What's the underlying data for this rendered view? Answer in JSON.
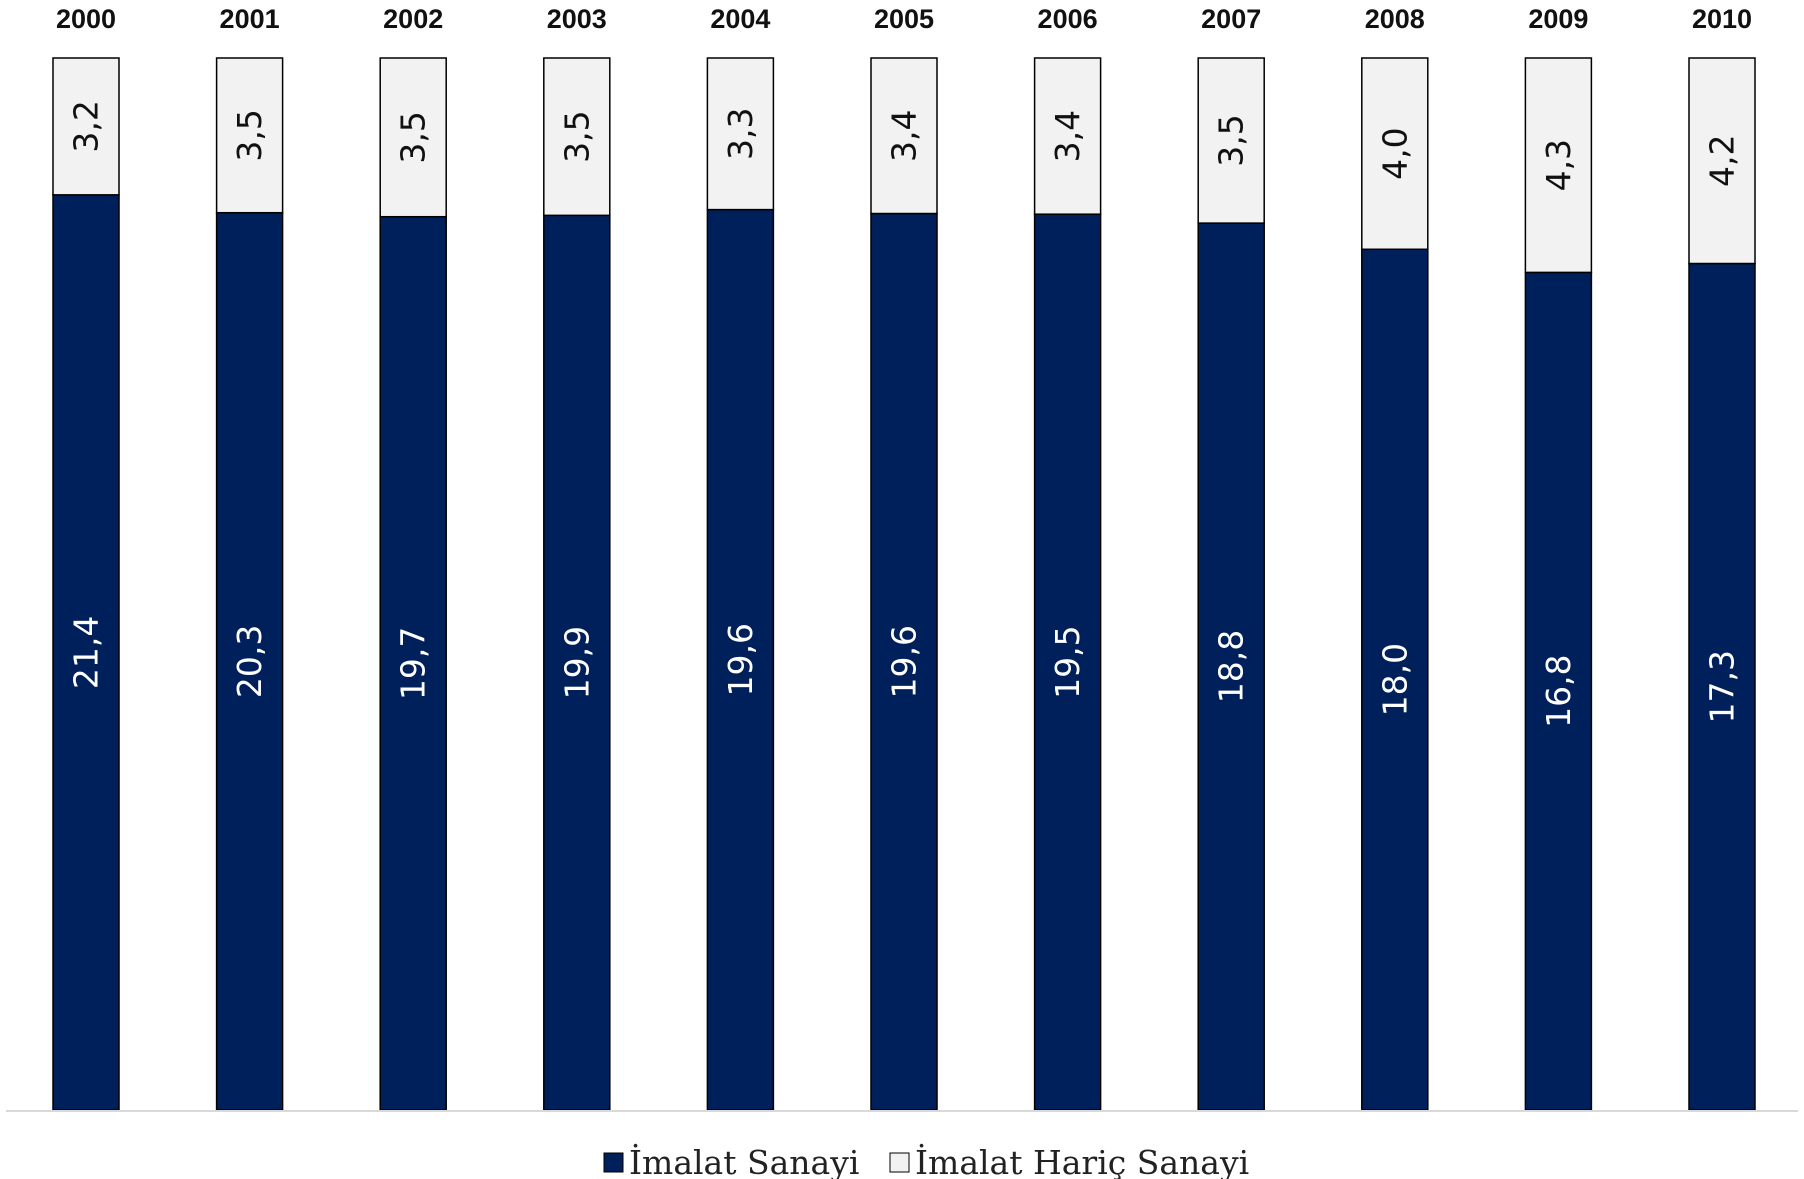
{
  "chart_data": {
    "type": "bar",
    "stacked": true,
    "orientation": "vertical",
    "categories": [
      "2000",
      "2001",
      "2002",
      "2003",
      "2004",
      "2005",
      "2006",
      "2007",
      "2008",
      "2009",
      "2010"
    ],
    "series": [
      {
        "name": "İmalat Sanayi",
        "values": [
          21.4,
          20.3,
          19.7,
          19.9,
          19.6,
          19.6,
          19.5,
          18.8,
          18.0,
          16.8,
          17.3
        ],
        "labels": [
          "21,4",
          "20,3",
          "19,7",
          "19,9",
          "19,6",
          "19,6",
          "19,5",
          "18,8",
          "18,0",
          "16,8",
          "17,3"
        ],
        "color": "#00205b"
      },
      {
        "name": "İmalat Hariç Sanayi",
        "values": [
          3.2,
          3.5,
          3.5,
          3.5,
          3.3,
          3.4,
          3.4,
          3.5,
          4.0,
          4.3,
          4.2
        ],
        "labels": [
          "3,2",
          "3,5",
          "3,5",
          "3,5",
          "3,3",
          "3,4",
          "3,4",
          "3,5",
          "4,0",
          "4,3",
          "4,2"
        ],
        "color": "#f2f2f2"
      }
    ],
    "category_axis_position": "top",
    "value_axis_visible": false,
    "grid": false,
    "legend": "bottom"
  }
}
